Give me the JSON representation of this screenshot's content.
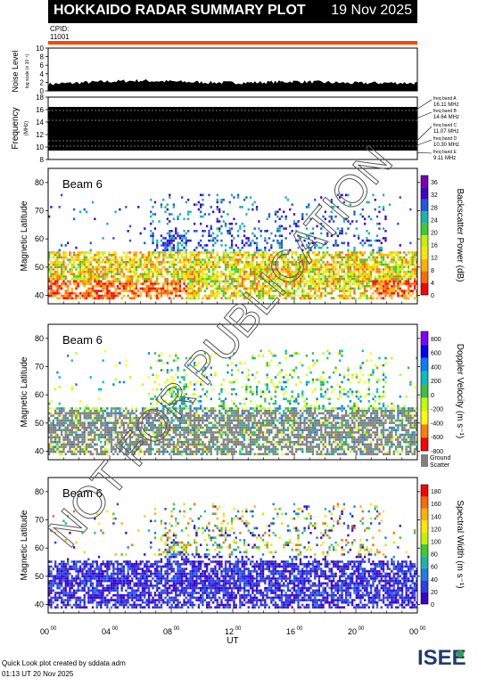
{
  "header": {
    "title": "HOKKAIDO RADAR SUMMARY PLOT",
    "date": "19 Nov 2025",
    "cpid_label": "CPID:",
    "cpid_value": "11001"
  },
  "noise_panel": {
    "ylabel": "Noise Level",
    "ylabel_units": "log scale (x 10⁻¹)",
    "yticks": [
      "0",
      "2",
      "4",
      "6",
      "8",
      "10"
    ]
  },
  "freq_panel": {
    "ylabel": "Frequency",
    "ylabel_units": "(MHz)",
    "yticks": [
      "8",
      "10",
      "12",
      "14",
      "16",
      "18"
    ],
    "bands": [
      {
        "label": "freq band A",
        "value": "16.11 MHz"
      },
      {
        "label": "freq band B",
        "value": "14.64 MHz"
      },
      {
        "label": "freq band C",
        "value": "11.07 MHz"
      },
      {
        "label": "freq band D",
        "value": "10.30 MHz"
      },
      {
        "label": "freq band E",
        "value": "9.11 MHz"
      }
    ]
  },
  "panels": [
    {
      "beam_label": "Beam  6",
      "ylabel": "Magnetic Latitude",
      "colorbar_label": "Backscatter Power (dB)",
      "colorbar_ticks": [
        "0",
        "4",
        "8",
        "12",
        "16",
        "20",
        "24",
        "28",
        "32",
        "36"
      ]
    },
    {
      "beam_label": "Beam  6",
      "ylabel": "Magnetic Latitude",
      "colorbar_label": "Doppler Velocity (m s⁻¹)",
      "colorbar_ticks": [
        "-800",
        "-600",
        "-400",
        "-200",
        "0",
        "200",
        "400",
        "600",
        "800"
      ],
      "ground_label": "Ground",
      "ground_label2": "Scatter"
    },
    {
      "beam_label": "Beam  6",
      "ylabel": "Magnetic Latitude",
      "colorbar_label": "Spectral Width (m s⁻¹)",
      "colorbar_ticks": [
        "0",
        "20",
        "40",
        "60",
        "80",
        "100",
        "120",
        "140",
        "160",
        "180"
      ]
    }
  ],
  "chart_data": [
    {
      "type": "area",
      "title": "Noise Level",
      "ylim": [
        0,
        10
      ],
      "xlim_hours": [
        0,
        24
      ],
      "description_values": {
        "x_hours": [
          0,
          2,
          4,
          6,
          8,
          10,
          12,
          14,
          16,
          18,
          20,
          22,
          24
        ],
        "y": [
          1.2,
          1.5,
          1.8,
          2.0,
          1.8,
          1.6,
          1.5,
          1.6,
          1.8,
          1.6,
          1.4,
          1.5,
          1.4
        ]
      }
    },
    {
      "type": "heatmap",
      "title": "Frequency",
      "ylim": [
        8,
        18
      ],
      "bands_mhz": [
        16.11,
        14.64,
        11.07,
        10.3,
        9.11
      ]
    },
    {
      "type": "heatmap",
      "title": "Backscatter Power (dB)",
      "ylim": [
        37,
        85
      ],
      "yticks": [
        40,
        50,
        60,
        70,
        80
      ],
      "clim": [
        0,
        36
      ]
    },
    {
      "type": "heatmap",
      "title": "Doppler Velocity (m s⁻¹)",
      "ylim": [
        37,
        85
      ],
      "yticks": [
        40,
        50,
        60,
        70,
        80
      ],
      "clim": [
        -800,
        800
      ]
    },
    {
      "type": "heatmap",
      "title": "Spectral Width (m s⁻¹)",
      "ylim": [
        37,
        85
      ],
      "yticks": [
        40,
        50,
        60,
        70,
        80
      ],
      "clim": [
        0,
        180
      ]
    }
  ],
  "xaxis": {
    "ticks": [
      "00",
      "04",
      "08",
      "12",
      "16",
      "20",
      "00"
    ],
    "tick_sup": "00",
    "label": "UT"
  },
  "footer": {
    "credit": "Quick Look plot created by sddata adm",
    "time": "01:13 UT 20 Nov 2025",
    "logo": "ISEE"
  },
  "watermark": "NOT FOR PUBLICATION",
  "colors": {
    "cpid_bar": "#ff4500",
    "ground_scatter": "#808080"
  }
}
